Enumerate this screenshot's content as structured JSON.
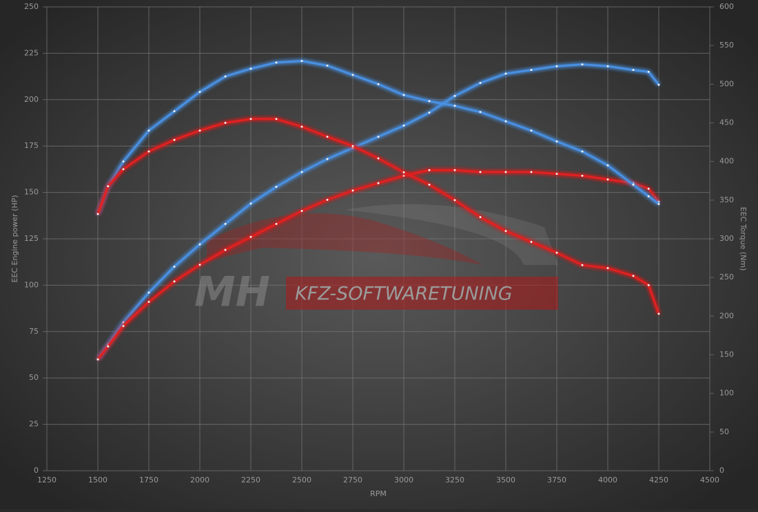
{
  "chart_data": {
    "type": "line",
    "xlabel": "RPM",
    "ylabel": "EEC Engine power (HP)",
    "y2label": "EEC Torque (Nm)",
    "watermark": [
      "MH",
      "KFZ-SOFTWARETUNING"
    ],
    "x": [
      1500,
      1550,
      1625,
      1750,
      1875,
      2000,
      2125,
      2250,
      2375,
      2500,
      2625,
      2750,
      2875,
      3000,
      3125,
      3250,
      3375,
      3500,
      3625,
      3750,
      3875,
      4000,
      4125,
      4200,
      4250
    ],
    "series": [
      {
        "color": "#4a90e2",
        "axis": "y",
        "values": [
          60,
          68,
          80,
          96,
          110,
          122,
          133,
          144,
          153,
          161,
          168,
          174,
          180,
          186,
          193,
          202,
          209,
          214,
          216,
          218,
          219,
          218,
          216,
          215,
          208
        ]
      },
      {
        "color": "#e02020",
        "axis": "y",
        "values": [
          60,
          67,
          78,
          91,
          102,
          111,
          119,
          126,
          133,
          140,
          146,
          151,
          155,
          159,
          162,
          162,
          161,
          161,
          161,
          160,
          159,
          157,
          155,
          152,
          145
        ]
      },
      {
        "color": "#4a90e2",
        "axis": "y2",
        "values": [
          332,
          368,
          400,
          440,
          465,
          490,
          510,
          520,
          528,
          530,
          524,
          512,
          500,
          486,
          478,
          472,
          464,
          452,
          440,
          426,
          413,
          395,
          370,
          355,
          345
        ]
      },
      {
        "color": "#e02020",
        "axis": "y2",
        "values": [
          332,
          368,
          390,
          413,
          428,
          440,
          450,
          455,
          455,
          445,
          432,
          420,
          404,
          386,
          370,
          350,
          328,
          310,
          296,
          282,
          266,
          262,
          252,
          240,
          203
        ]
      }
    ],
    "xlim": [
      1250,
      4500
    ],
    "xticks": [
      1250,
      1500,
      1750,
      2000,
      2250,
      2500,
      2750,
      3000,
      3250,
      3500,
      3750,
      4000,
      4250,
      4500
    ],
    "ylim": [
      0,
      250
    ],
    "yticks": [
      0,
      25,
      50,
      75,
      100,
      125,
      150,
      175,
      200,
      225,
      250
    ],
    "y2lim": [
      0,
      600
    ],
    "y2ticks": [
      0,
      50,
      100,
      150,
      200,
      250,
      300,
      350,
      400,
      450,
      500,
      550,
      600
    ],
    "grid": true
  }
}
